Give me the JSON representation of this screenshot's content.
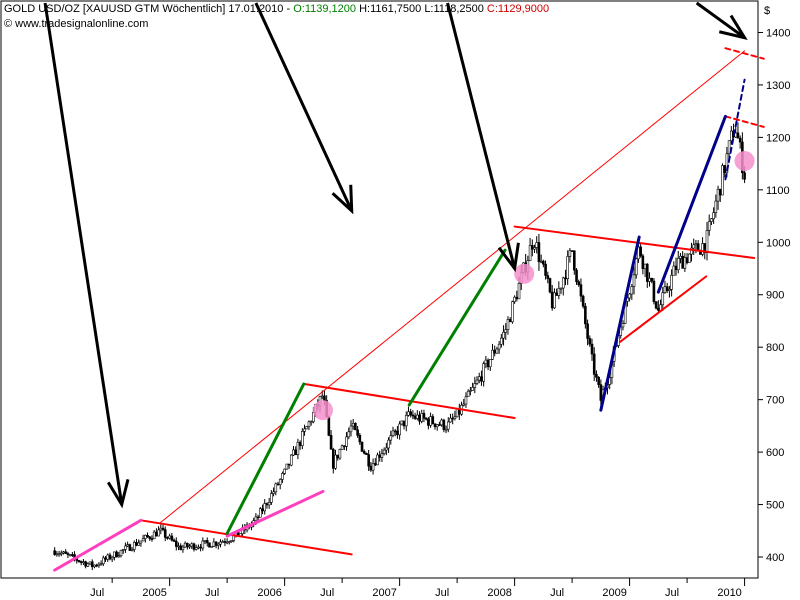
{
  "header": {
    "instrument": "GOLD USD/OZ [XAUUSD GTM",
    "period": "Wöchentlich]",
    "date": "17.01.2010",
    "open": "O:1139,1200",
    "high": "H:1161,7500",
    "low": "L:1118,2500",
    "close": "C:1129,9000",
    "source": "© www.tradesignalonline.com"
  },
  "chart_data": {
    "type": "candlestick",
    "interval": "weekly",
    "x_start": "2004-01",
    "x_end": "2010-01",
    "ylim": [
      360,
      1460
    ],
    "y_axis_side": "right",
    "y_unit": "$",
    "y_ticks": [
      "400",
      "500",
      "600",
      "700",
      "800",
      "900",
      "1000",
      "1100",
      "1200",
      "1300",
      "1400"
    ],
    "x_ticks": [
      "Jul",
      "2005",
      "Jul",
      "2006",
      "Jul",
      "2007",
      "Jul",
      "2008",
      "Jul",
      "2009",
      "Jul",
      "2010"
    ],
    "grid": false,
    "price_path": [
      {
        "x": "2004-01",
        "y": 412
      },
      {
        "x": "2004-05",
        "y": 383
      },
      {
        "x": "2004-07",
        "y": 402
      },
      {
        "x": "2004-12",
        "y": 450
      },
      {
        "x": "2005-02",
        "y": 418
      },
      {
        "x": "2005-06",
        "y": 428
      },
      {
        "x": "2005-08",
        "y": 440
      },
      {
        "x": "2005-10",
        "y": 470
      },
      {
        "x": "2006-01",
        "y": 560
      },
      {
        "x": "2006-05",
        "y": 710
      },
      {
        "x": "2006-06",
        "y": 575
      },
      {
        "x": "2006-08",
        "y": 650
      },
      {
        "x": "2006-10",
        "y": 575
      },
      {
        "x": "2007-02",
        "y": 670
      },
      {
        "x": "2007-06",
        "y": 650
      },
      {
        "x": "2007-07",
        "y": 670
      },
      {
        "x": "2007-09",
        "y": 730
      },
      {
        "x": "2007-12",
        "y": 830
      },
      {
        "x": "2008-03",
        "y": 1010
      },
      {
        "x": "2008-05",
        "y": 880
      },
      {
        "x": "2008-06",
        "y": 930
      },
      {
        "x": "2008-07",
        "y": 985
      },
      {
        "x": "2008-09",
        "y": 780
      },
      {
        "x": "2008-10",
        "y": 700
      },
      {
        "x": "2008-11",
        "y": 760
      },
      {
        "x": "2009-02",
        "y": 990
      },
      {
        "x": "2009-04",
        "y": 870
      },
      {
        "x": "2009-06",
        "y": 960
      },
      {
        "x": "2009-09",
        "y": 1000
      },
      {
        "x": "2009-11",
        "y": 1150
      },
      {
        "x": "2009-12",
        "y": 1225
      },
      {
        "x": "2010-01",
        "y": 1130
      }
    ],
    "trendlines": [
      {
        "color": "#ff0000",
        "width": 1,
        "from": {
          "x": "2004-12",
          "y": 465
        },
        "to": {
          "x": "2010-01",
          "y": 1365
        }
      },
      {
        "color": "#ff0000",
        "width": 2,
        "from": {
          "x": "2004-10",
          "y": 470
        },
        "to": {
          "x": "2006-08",
          "y": 405
        }
      },
      {
        "color": "#ff0000",
        "width": 2,
        "from": {
          "x": "2006-03",
          "y": 730
        },
        "to": {
          "x": "2008-01",
          "y": 665
        }
      },
      {
        "color": "#ff0000",
        "width": 2,
        "from": {
          "x": "2008-01",
          "y": 1030
        },
        "to": {
          "x": "2010-02",
          "y": 970
        }
      },
      {
        "color": "#ff0000",
        "width": 2,
        "from": {
          "x": "2008-12",
          "y": 810
        },
        "to": {
          "x": "2009-09",
          "y": 935
        }
      },
      {
        "color": "#ff0000",
        "width": 2,
        "dashed": true,
        "from": {
          "x": "2009-11",
          "y": 1240
        },
        "to": {
          "x": "2010-03",
          "y": 1220
        }
      },
      {
        "color": "#ff0000",
        "width": 2,
        "dashed": true,
        "from": {
          "x": "2009-11",
          "y": 1370
        },
        "to": {
          "x": "2010-03",
          "y": 1350
        }
      },
      {
        "color": "#ff3fbf",
        "width": 3,
        "from": {
          "x": "2004-01",
          "y": 375
        },
        "to": {
          "x": "2004-10",
          "y": 470
        }
      },
      {
        "color": "#ff3fbf",
        "width": 3,
        "from": {
          "x": "2005-07",
          "y": 440
        },
        "to": {
          "x": "2006-05",
          "y": 525
        }
      },
      {
        "color": "#008000",
        "width": 3,
        "from": {
          "x": "2005-07",
          "y": 445
        },
        "to": {
          "x": "2006-03",
          "y": 730
        }
      },
      {
        "color": "#008000",
        "width": 3,
        "from": {
          "x": "2007-02",
          "y": 690
        },
        "to": {
          "x": "2007-12",
          "y": 985
        }
      },
      {
        "color": "#00008b",
        "width": 3,
        "from": {
          "x": "2008-10",
          "y": 680
        },
        "to": {
          "x": "2009-02",
          "y": 1010
        }
      },
      {
        "color": "#00008b",
        "width": 3,
        "from": {
          "x": "2009-04",
          "y": 905
        },
        "to": {
          "x": "2009-11",
          "y": 1240
        }
      },
      {
        "color": "#00008b",
        "width": 2,
        "dashed": true,
        "from": {
          "x": "2009-11",
          "y": 1120
        },
        "to": {
          "x": "2010-01",
          "y": 1310
        }
      }
    ],
    "markers": [
      {
        "color": "#f48fcc",
        "x": "2006-05",
        "y": 680
      },
      {
        "color": "#f48fcc",
        "x": "2008-02",
        "y": 940
      },
      {
        "color": "#f48fcc",
        "x": "2010-01",
        "y": 1155
      }
    ],
    "arrows": [
      {
        "color": "#000000",
        "from": {
          "x": "2003-12",
          "y": 1460
        },
        "to": {
          "x": "2004-08",
          "y": 500
        }
      },
      {
        "color": "#000000",
        "from": {
          "x": "2005-10",
          "y": 1460
        },
        "to": {
          "x": "2006-08",
          "y": 1060
        }
      },
      {
        "color": "#000000",
        "from": {
          "x": "2007-06",
          "y": 1460
        },
        "to": {
          "x": "2008-01",
          "y": 950
        }
      },
      {
        "color": "#000000",
        "from": {
          "x": "2009-08",
          "y": 1460
        },
        "to": {
          "x": "2010-01",
          "y": 1390
        }
      }
    ]
  }
}
